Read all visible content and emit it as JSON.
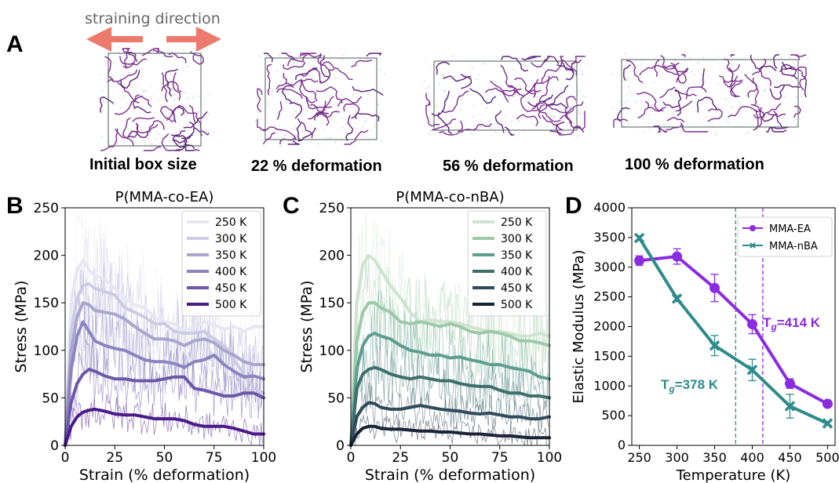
{
  "panel_a": {
    "label": "A",
    "direction_label": "straining direction",
    "captions": [
      "Initial box size",
      "22 % deformation",
      "56 % deformation",
      "100 % deformation"
    ]
  },
  "chart_data": [
    {
      "type": "line",
      "panel": "B",
      "title": "P(MMA-co-EA)",
      "xlabel": "Strain (% deformation)",
      "ylabel": "Stress (MPa)",
      "xlim": [
        0,
        100
      ],
      "ylim": [
        0,
        250
      ],
      "xticks": [
        "0",
        "25",
        "50",
        "75",
        "100"
      ],
      "yticks": [
        "0",
        "50",
        "100",
        "150",
        "200",
        "250"
      ],
      "legend_position": "top-right",
      "x": [
        0,
        3,
        6,
        9,
        12,
        15,
        20,
        25,
        30,
        35,
        40,
        45,
        50,
        55,
        60,
        65,
        70,
        75,
        80,
        85,
        90,
        95,
        100
      ],
      "series": [
        {
          "name": "250 K",
          "color": "#e8e6f2",
          "values": [
            0,
            150,
            185,
            195,
            185,
            178,
            175,
            165,
            155,
            148,
            145,
            135,
            130,
            128,
            120,
            125,
            130,
            127,
            122,
            125,
            120,
            125,
            125
          ]
        },
        {
          "name": "300 K",
          "color": "#cdcbe3",
          "values": [
            0,
            120,
            155,
            168,
            170,
            165,
            162,
            158,
            145,
            140,
            135,
            128,
            128,
            120,
            118,
            118,
            120,
            112,
            105,
            90,
            75,
            60,
            55
          ]
        },
        {
          "name": "350 K",
          "color": "#a9a5cf",
          "values": [
            0,
            100,
            135,
            150,
            148,
            142,
            140,
            138,
            133,
            125,
            118,
            112,
            112,
            110,
            105,
            110,
            112,
            108,
            100,
            95,
            88,
            85,
            85
          ]
        },
        {
          "name": "400 K",
          "color": "#8b84bf",
          "values": [
            0,
            80,
            115,
            130,
            120,
            110,
            105,
            102,
            100,
            95,
            90,
            88,
            88,
            86,
            82,
            88,
            90,
            95,
            85,
            78,
            72,
            73,
            70
          ]
        },
        {
          "name": "450 K",
          "color": "#6c57a9",
          "values": [
            0,
            45,
            65,
            75,
            80,
            78,
            73,
            70,
            70,
            68,
            68,
            68,
            70,
            72,
            72,
            60,
            58,
            55,
            52,
            52,
            55,
            55,
            50
          ]
        },
        {
          "name": "500 K",
          "color": "#4b1b8c",
          "values": [
            0,
            20,
            30,
            35,
            37,
            38,
            36,
            33,
            32,
            32,
            30,
            28,
            28,
            28,
            26,
            22,
            20,
            20,
            20,
            18,
            15,
            12,
            12
          ]
        }
      ]
    },
    {
      "type": "line",
      "panel": "C",
      "title": "P(MMA-co-nBA)",
      "xlabel": "Strain (% deformation)",
      "ylabel": "Stress (MPa)",
      "xlim": [
        0,
        100
      ],
      "ylim": [
        0,
        250
      ],
      "xticks": [
        "0",
        "25",
        "50",
        "75",
        "100"
      ],
      "yticks": [
        "0",
        "50",
        "100",
        "150",
        "200",
        "250"
      ],
      "legend_position": "top-right",
      "x": [
        0,
        3,
        6,
        9,
        12,
        15,
        20,
        25,
        30,
        35,
        40,
        45,
        50,
        55,
        60,
        65,
        70,
        75,
        80,
        85,
        90,
        95,
        100
      ],
      "series": [
        {
          "name": "250 K",
          "color": "#cfe3cf",
          "values": [
            0,
            150,
            190,
            200,
            195,
            185,
            168,
            155,
            140,
            130,
            132,
            130,
            130,
            128,
            125,
            122,
            120,
            120,
            118,
            115,
            115,
            118,
            115
          ]
        },
        {
          "name": "300 K",
          "color": "#9cc9a8",
          "values": [
            0,
            110,
            140,
            150,
            150,
            145,
            140,
            130,
            128,
            130,
            128,
            125,
            128,
            125,
            120,
            118,
            120,
            118,
            115,
            110,
            110,
            108,
            105
          ]
        },
        {
          "name": "350 K",
          "color": "#5e9e8e",
          "values": [
            0,
            80,
            105,
            115,
            118,
            115,
            112,
            105,
            100,
            98,
            95,
            95,
            92,
            93,
            90,
            88,
            85,
            85,
            82,
            80,
            78,
            72,
            70
          ]
        },
        {
          "name": "400 K",
          "color": "#3d6f6d",
          "values": [
            0,
            60,
            75,
            80,
            82,
            80,
            75,
            72,
            70,
            72,
            70,
            68,
            68,
            65,
            63,
            62,
            62,
            58,
            55,
            55,
            52,
            52,
            50
          ]
        },
        {
          "name": "450 K",
          "color": "#2f4b5c",
          "values": [
            0,
            30,
            40,
            45,
            44,
            40,
            38,
            38,
            40,
            42,
            40,
            38,
            37,
            36,
            34,
            33,
            34,
            32,
            30,
            30,
            28,
            28,
            30
          ]
        },
        {
          "name": "500 K",
          "color": "#1a2437",
          "values": [
            0,
            12,
            18,
            20,
            20,
            18,
            17,
            17,
            16,
            15,
            15,
            14,
            14,
            13,
            12,
            12,
            11,
            10,
            10,
            9,
            8,
            8,
            8
          ]
        }
      ]
    },
    {
      "type": "line",
      "panel": "D",
      "title": "",
      "xlabel": "Temperature (K)",
      "ylabel": "Elastic Modulus (MPa)",
      "xlim": [
        240,
        510
      ],
      "ylim": [
        0,
        4000
      ],
      "xticks": [
        "250",
        "300",
        "350",
        "400",
        "450",
        "500"
      ],
      "yticks": [
        "0",
        "500",
        "1000",
        "1500",
        "2000",
        "2500",
        "3000",
        "3500",
        "4000"
      ],
      "legend_position": "top-right",
      "x": [
        250,
        300,
        350,
        400,
        450,
        500
      ],
      "series": [
        {
          "name": "MMA-EA",
          "color": "#8a2be2",
          "marker": "circle",
          "values": [
            3110,
            3180,
            2650,
            2040,
            1040,
            700
          ],
          "errors": [
            80,
            130,
            230,
            160,
            80,
            50
          ]
        },
        {
          "name": "MMA-nBA",
          "color": "#2e8b8b",
          "marker": "x",
          "values": [
            3490,
            2470,
            1680,
            1270,
            660,
            370
          ],
          "errors": [
            40,
            50,
            170,
            180,
            200,
            30
          ]
        }
      ],
      "vlines": [
        {
          "x": 378,
          "color": "#2e8b8b"
        },
        {
          "x": 414,
          "color": "#8a2be2"
        }
      ],
      "annotations": [
        {
          "base": "T",
          "sub": "g",
          "value": "=378 K",
          "color": "#2e8b8b"
        },
        {
          "base": "T",
          "sub": "g",
          "value": "=414 K",
          "color": "#8a2be2"
        }
      ]
    }
  ],
  "panel_labels": [
    "B",
    "C",
    "D"
  ]
}
